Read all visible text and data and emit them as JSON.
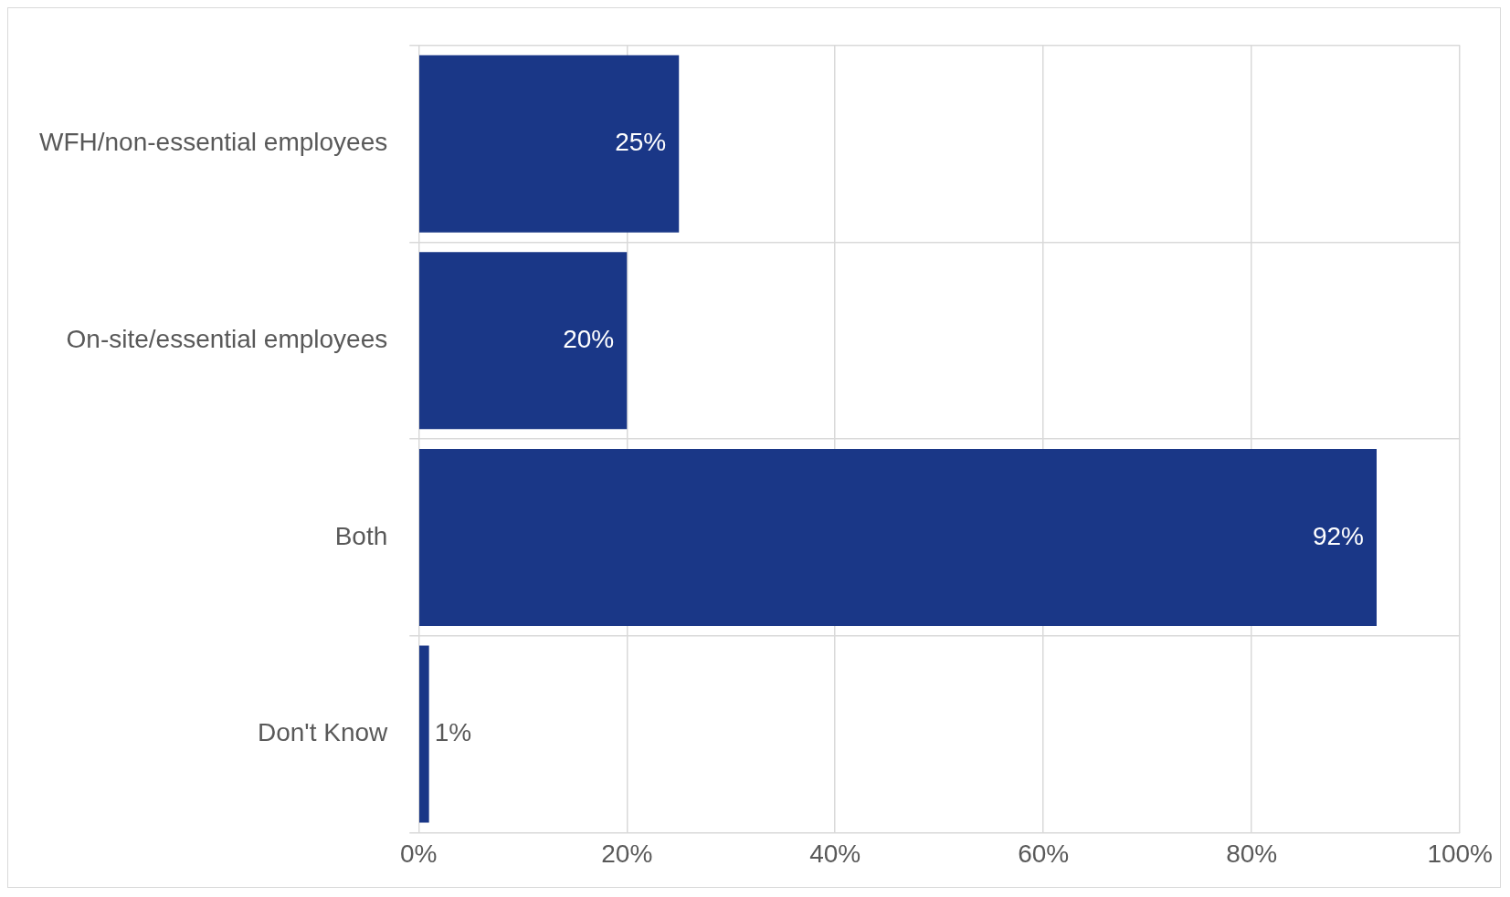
{
  "chart_data": {
    "type": "bar",
    "orientation": "horizontal",
    "categories": [
      "WFH/non-essential employees",
      "On-site/essential employees",
      "Both",
      "Don't Know"
    ],
    "values": [
      25,
      20,
      92,
      1
    ],
    "color": "#1a3787",
    "value_labels": [
      "25%",
      "20%",
      "92%",
      "1%"
    ],
    "xlim": [
      0,
      100
    ],
    "xticks": [
      {
        "value": 0,
        "label": "0%"
      },
      {
        "value": 20,
        "label": "20%"
      },
      {
        "value": 40,
        "label": "40%"
      },
      {
        "value": 60,
        "label": "60%"
      },
      {
        "value": 80,
        "label": "80%"
      },
      {
        "value": 100,
        "label": "100%"
      }
    ],
    "grid": true,
    "legend": false
  }
}
